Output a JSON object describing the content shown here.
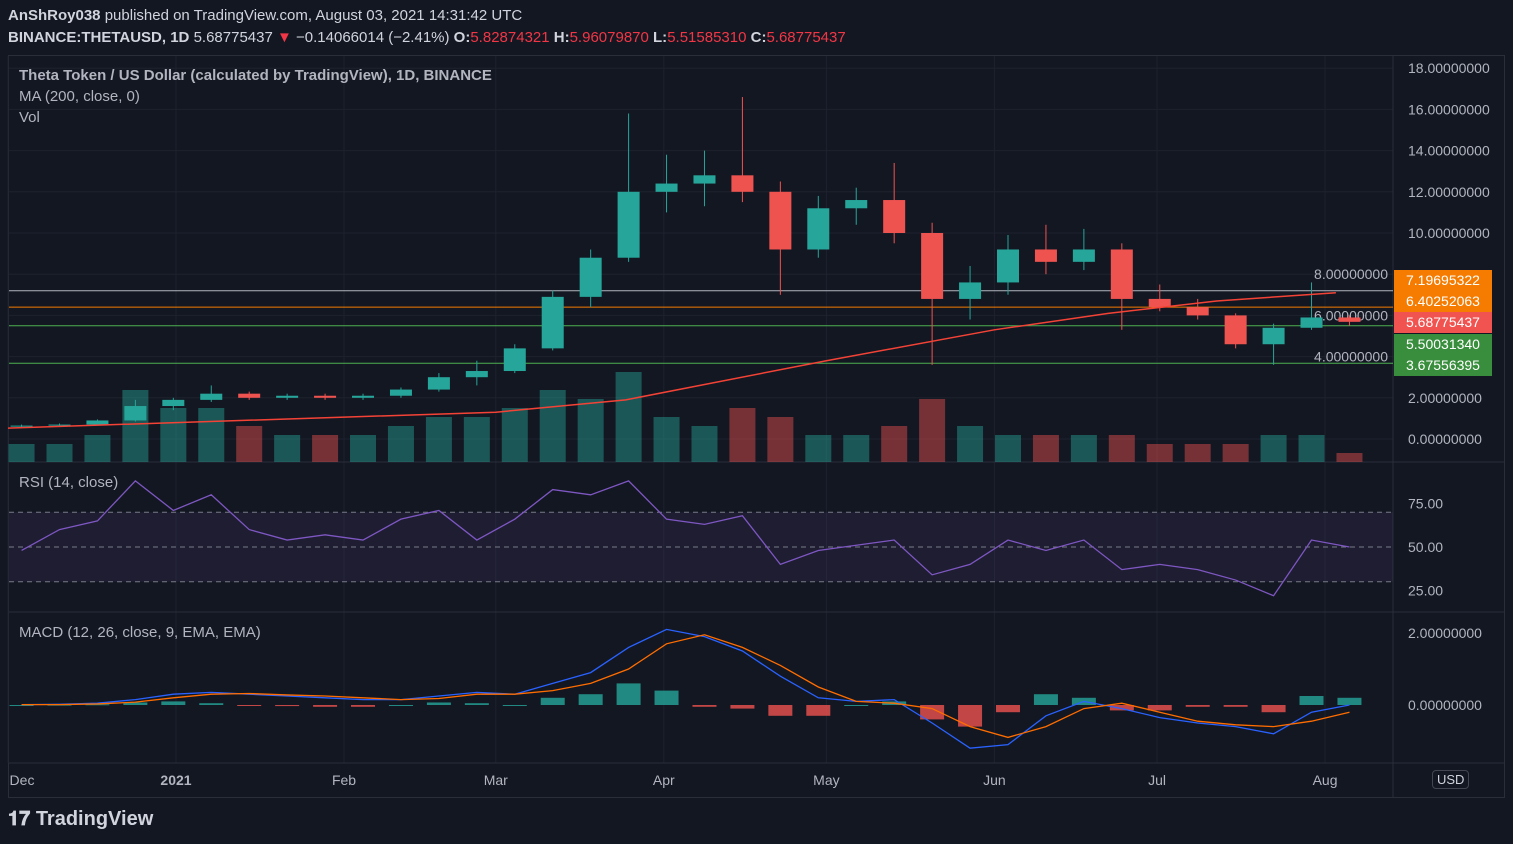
{
  "header": {
    "author": "AnShRoy038",
    "published": "published on TradingView.com, August 03, 2021 14:31:42 UTC",
    "symbol": "BINANCE:THETAUSD, 1D",
    "last": "5.68775437",
    "change": "−0.14066014 (−2.41%)",
    "o_label": "O:",
    "o": "5.82874321",
    "h_label": "H:",
    "h": "5.96079870",
    "l_label": "L:",
    "l": "5.51585310",
    "c_label": "C:",
    "c": "5.68775437"
  },
  "legend": {
    "title": "Theta Token / US Dollar (calculated by TradingView), 1D, BINANCE",
    "ma": "MA (200, close, 0)",
    "vol": "Vol",
    "rsi": "RSI (14, close)",
    "macd": "MACD (12, 26, close, 9, EMA, EMA)"
  },
  "currency": "USD",
  "price_tags": [
    {
      "value": "7.19695322",
      "color": "#f57c00"
    },
    {
      "value": "6.40252063",
      "color": "#f57c00"
    },
    {
      "value": "5.68775437",
      "color": "#f05350"
    },
    {
      "value": "5.50031340",
      "color": "#388e3c"
    },
    {
      "value": "3.67556395",
      "color": "#388e3c"
    }
  ],
  "footer": {
    "logo": "TradingView"
  },
  "colors": {
    "up": "#26a69a",
    "down": "#ef5350",
    "ma": "#f44336",
    "rsi": "#7e57c2",
    "macd": "#2962ff",
    "signal": "#ff6d00"
  },
  "chart_data": [
    {
      "type": "candlestick",
      "title": "Theta Token / US Dollar (calculated by TradingView), 1D, BINANCE",
      "ylim": [
        0,
        18
      ],
      "yticks": [
        "0.00000000",
        "2.00000000",
        "4.00000000",
        "6.00000000",
        "8.00000000",
        "10.00000000",
        "12.00000000",
        "14.00000000",
        "16.00000000",
        "18.00000000"
      ],
      "xticks": [
        {
          "label": "Dec",
          "date": "2020-12-01"
        },
        {
          "label": "2021",
          "date": "2021-01-01"
        },
        {
          "label": "Feb",
          "date": "2021-02-01"
        },
        {
          "label": "Mar",
          "date": "2021-03-01"
        },
        {
          "label": "Apr",
          "date": "2021-04-01"
        },
        {
          "label": "May",
          "date": "2021-05-01"
        },
        {
          "label": "Jun",
          "date": "2021-06-01"
        },
        {
          "label": "Jul",
          "date": "2021-07-01"
        },
        {
          "label": "Aug",
          "date": "2021-08-01"
        }
      ],
      "hlines": [
        7.19695322,
        6.40252063,
        5.5003134,
        3.67556395
      ],
      "weeks": [
        "2020-11-30",
        "2020-12-07",
        "2020-12-14",
        "2020-12-21",
        "2020-12-28",
        "2021-01-04",
        "2021-01-11",
        "2021-01-18",
        "2021-01-25",
        "2021-02-01",
        "2021-02-08",
        "2021-02-15",
        "2021-02-22",
        "2021-03-01",
        "2021-03-08",
        "2021-03-15",
        "2021-03-22",
        "2021-03-29",
        "2021-04-05",
        "2021-04-12",
        "2021-04-19",
        "2021-04-26",
        "2021-05-03",
        "2021-05-10",
        "2021-05-17",
        "2021-05-24",
        "2021-05-31",
        "2021-06-07",
        "2021-06-14",
        "2021-06-21",
        "2021-06-28",
        "2021-07-05",
        "2021-07-12",
        "2021-07-19",
        "2021-07-26",
        "2021-08-02"
      ],
      "ohlc": [
        [
          0.6,
          0.7,
          0.55,
          0.65
        ],
        [
          0.65,
          0.75,
          0.6,
          0.7
        ],
        [
          0.7,
          0.95,
          0.68,
          0.9
        ],
        [
          0.9,
          1.9,
          0.85,
          1.6
        ],
        [
          1.6,
          2.0,
          1.4,
          1.9
        ],
        [
          1.9,
          2.6,
          1.8,
          2.2
        ],
        [
          2.2,
          2.3,
          1.9,
          2.0
        ],
        [
          2.0,
          2.2,
          1.9,
          2.1
        ],
        [
          2.1,
          2.2,
          1.9,
          2.0
        ],
        [
          2.0,
          2.2,
          1.9,
          2.1
        ],
        [
          2.1,
          2.5,
          2.0,
          2.4
        ],
        [
          2.4,
          3.2,
          2.3,
          3.0
        ],
        [
          3.0,
          3.8,
          2.6,
          3.3
        ],
        [
          3.3,
          4.6,
          3.2,
          4.4
        ],
        [
          4.4,
          7.2,
          4.3,
          6.9
        ],
        [
          6.9,
          9.2,
          6.4,
          8.8
        ],
        [
          8.8,
          15.8,
          8.6,
          12.0
        ],
        [
          12.0,
          13.8,
          11.0,
          12.4
        ],
        [
          12.4,
          14.0,
          11.3,
          12.8
        ],
        [
          12.8,
          16.6,
          11.5,
          12.0
        ],
        [
          12.0,
          12.5,
          7.0,
          9.2
        ],
        [
          9.2,
          11.8,
          8.8,
          11.2
        ],
        [
          11.2,
          12.2,
          10.4,
          11.6
        ],
        [
          11.6,
          13.4,
          9.5,
          10.0
        ],
        [
          10.0,
          10.5,
          3.6,
          6.8
        ],
        [
          6.8,
          8.4,
          5.8,
          7.6
        ],
        [
          7.6,
          9.9,
          7.0,
          9.2
        ],
        [
          9.2,
          10.4,
          8.0,
          8.6
        ],
        [
          8.6,
          10.2,
          8.2,
          9.2
        ],
        [
          9.2,
          9.5,
          5.3,
          6.8
        ],
        [
          6.8,
          7.5,
          6.2,
          6.4
        ],
        [
          6.4,
          6.8,
          5.8,
          6.0
        ],
        [
          6.0,
          6.1,
          4.4,
          4.6
        ],
        [
          4.6,
          5.6,
          3.6,
          5.4
        ],
        [
          5.4,
          7.6,
          5.3,
          5.9
        ],
        [
          5.9,
          6.0,
          5.5,
          5.68775437
        ]
      ],
      "volume_relative": [
        0.2,
        0.2,
        0.3,
        0.8,
        0.6,
        0.6,
        0.4,
        0.3,
        0.3,
        0.3,
        0.4,
        0.5,
        0.5,
        0.6,
        0.8,
        0.7,
        1.0,
        0.5,
        0.4,
        0.6,
        0.5,
        0.3,
        0.3,
        0.4,
        0.7,
        0.4,
        0.3,
        0.3,
        0.3,
        0.3,
        0.2,
        0.2,
        0.2,
        0.3,
        0.3,
        0.1
      ],
      "ma200": {
        "dates": [
          "2020-12-01",
          "2021-03-01",
          "2021-03-25",
          "2021-05-01",
          "2021-06-01",
          "2021-06-22",
          "2021-07-12",
          "2021-08-03"
        ],
        "values": [
          0.53,
          1.3,
          1.9,
          3.8,
          5.3,
          6.1,
          6.7,
          7.1
        ]
      }
    },
    {
      "type": "line",
      "name": "RSI (14, close)",
      "ylim": [
        15,
        95
      ],
      "yticks": [
        "25.00",
        "50.00",
        "75.00"
      ],
      "bands": [
        30,
        70
      ],
      "values": [
        48,
        60,
        65,
        88,
        71,
        80,
        60,
        54,
        57,
        54,
        66,
        71,
        54,
        66,
        83,
        80,
        88,
        66,
        63,
        68,
        40,
        48,
        51,
        54,
        34,
        40,
        54,
        48,
        54,
        37,
        40,
        37,
        31,
        22,
        54,
        50
      ]
    },
    {
      "type": "line",
      "name": "MACD (12, 26, close, 9, EMA, EMA)",
      "ylim": [
        -1.6,
        2.3
      ],
      "yticks": [
        "0.00000000",
        "2.00000000"
      ],
      "macd": [
        0.01,
        0.02,
        0.05,
        0.15,
        0.3,
        0.35,
        0.3,
        0.25,
        0.2,
        0.15,
        0.15,
        0.25,
        0.35,
        0.3,
        0.6,
        0.9,
        1.6,
        2.1,
        1.9,
        1.5,
        0.8,
        0.2,
        0.1,
        0.15,
        -0.5,
        -1.2,
        -1.1,
        -0.3,
        0.1,
        -0.1,
        -0.35,
        -0.5,
        -0.6,
        -0.8,
        -0.2,
        0.0
      ],
      "signal": [
        0.01,
        0.01,
        0.03,
        0.08,
        0.2,
        0.3,
        0.32,
        0.28,
        0.25,
        0.2,
        0.15,
        0.18,
        0.3,
        0.3,
        0.4,
        0.6,
        1.0,
        1.7,
        1.95,
        1.6,
        1.1,
        0.5,
        0.1,
        0.05,
        -0.1,
        -0.6,
        -0.9,
        -0.6,
        -0.1,
        0.05,
        -0.2,
        -0.45,
        -0.55,
        -0.6,
        -0.45,
        -0.2
      ]
    }
  ]
}
